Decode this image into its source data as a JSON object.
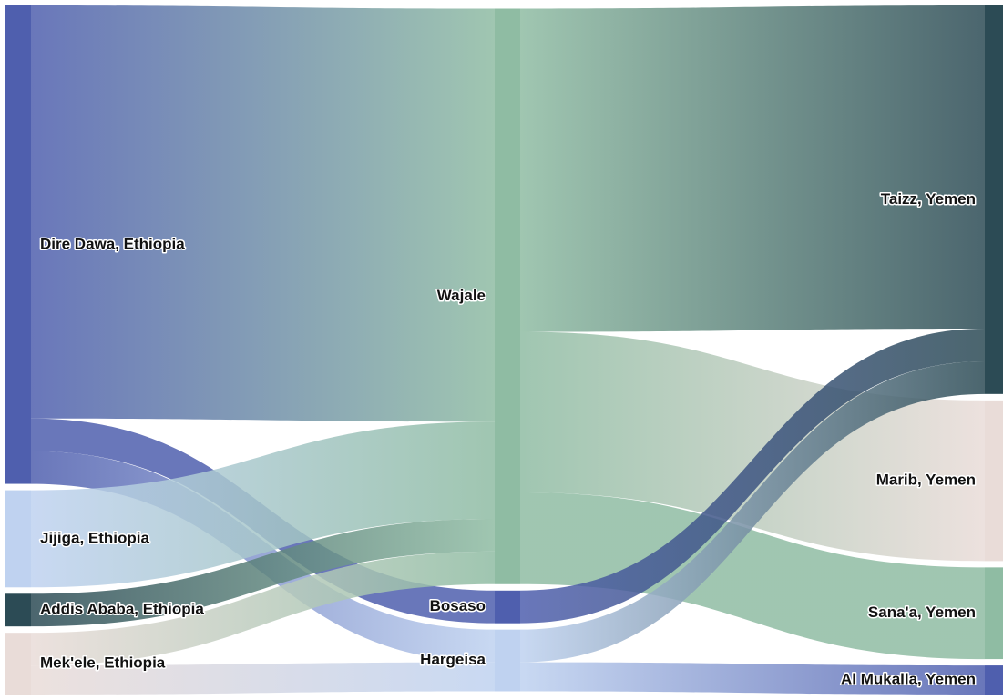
{
  "diagram": {
    "type": "sankey",
    "nodes": [
      {
        "id": "dire_dawa",
        "label": "Dire Dawa, Ethiopia",
        "column": 0,
        "color": "#4f5fae"
      },
      {
        "id": "jijiga",
        "label": "Jijiga, Ethiopia",
        "column": 0,
        "color": "#bfd2f0"
      },
      {
        "id": "addis",
        "label": "Addis Ababa, Ethiopia",
        "column": 0,
        "color": "#2c4b55"
      },
      {
        "id": "mekele",
        "label": "Mek'ele, Ethiopia",
        "column": 0,
        "color": "#e9dcd8"
      },
      {
        "id": "wajale",
        "label": "Wajale",
        "column": 1,
        "color": "#8fbca3"
      },
      {
        "id": "bosaso",
        "label": "Bosaso",
        "column": 1,
        "color": "#4f5fae"
      },
      {
        "id": "hargeisa",
        "label": "Hargeisa",
        "column": 1,
        "color": "#bfd2f0"
      },
      {
        "id": "taizz",
        "label": "Taizz, Yemen",
        "column": 2,
        "color": "#2c4b55"
      },
      {
        "id": "marib",
        "label": "Marib, Yemen",
        "column": 2,
        "color": "#e9dcd8"
      },
      {
        "id": "sanaa",
        "label": "Sana'a, Yemen",
        "column": 2,
        "color": "#8fbca3"
      },
      {
        "id": "mukalla",
        "label": "Al Mukalla, Yemen",
        "column": 2,
        "color": "#4f5fae"
      }
    ],
    "links": [
      {
        "source": "dire_dawa",
        "target": "wajale",
        "value": 455
      },
      {
        "source": "dire_dawa",
        "target": "bosaso",
        "value": 36
      },
      {
        "source": "dire_dawa",
        "target": "hargeisa",
        "value": 36
      },
      {
        "source": "jijiga",
        "target": "wajale",
        "value": 107
      },
      {
        "source": "addis",
        "target": "wajale",
        "value": 36
      },
      {
        "source": "mekele",
        "target": "wajale",
        "value": 36
      },
      {
        "source": "mekele",
        "target": "hargeisa",
        "value": 32
      },
      {
        "source": "wajale",
        "target": "taizz",
        "value": 356
      },
      {
        "source": "wajale",
        "target": "marib",
        "value": 177
      },
      {
        "source": "wajale",
        "target": "sanaa",
        "value": 101
      },
      {
        "source": "bosaso",
        "target": "taizz",
        "value": 36
      },
      {
        "source": "hargeisa",
        "target": "taizz",
        "value": 36
      },
      {
        "source": "hargeisa",
        "target": "mukalla",
        "value": 32
      }
    ]
  }
}
